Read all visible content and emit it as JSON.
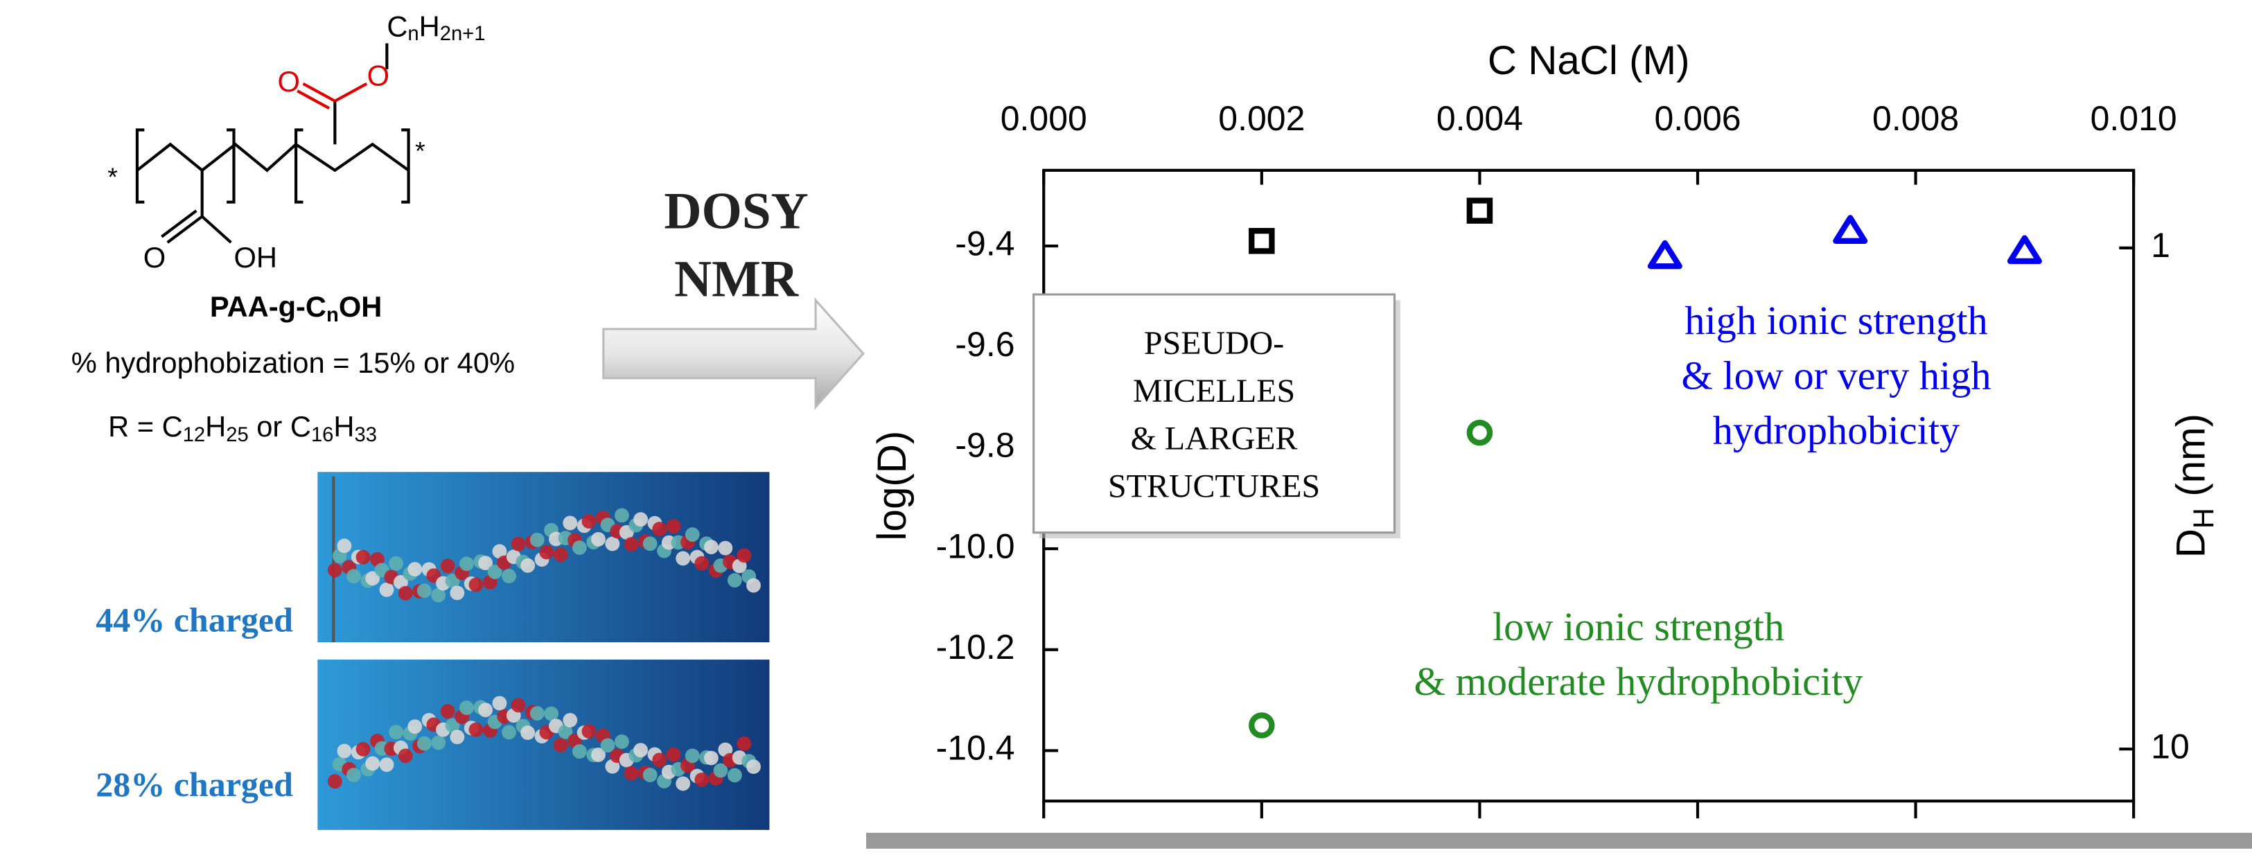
{
  "chemistry": {
    "substituent": [
      "C",
      "n",
      "H",
      "2n+1"
    ],
    "ester_oxygens": [
      "O",
      "O"
    ],
    "acid": [
      "O",
      "OH"
    ],
    "ends": [
      "*",
      "*"
    ],
    "name": [
      "PAA-g-C",
      "n",
      "OH"
    ],
    "hydrophobization": "% hydrophobization = 15% or 40%",
    "r_formula": [
      "R = C",
      "12",
      "H",
      "25",
      " or C",
      "16",
      "H",
      "33"
    ]
  },
  "method": [
    "DOSY",
    "NMR"
  ],
  "snapshots": [
    "44% charged",
    "28% charged"
  ],
  "chart_data": {
    "type": "scatter",
    "xlabel": "C NaCl (M)",
    "ylabel": "log(D)",
    "y2label": [
      "D",
      "H",
      " (nm)"
    ],
    "xlim": [
      0,
      0.01
    ],
    "xticks": [
      {
        "value": 0,
        "label": "0.000"
      },
      0.002,
      0.004,
      0.006,
      0.008,
      {
        "value": 0.01,
        "label": "0.010"
      }
    ],
    "ylim": [
      -10.5,
      -9.25
    ],
    "yticks": [
      -9.4,
      -9.6,
      -9.8,
      {
        "value": -10,
        "label": "-10.0"
      },
      -10.2,
      -10.4
    ],
    "y2lim": [
      0.7,
      12.7
    ],
    "y2scale": "log",
    "y2ticks": [
      1,
      10
    ],
    "series": [
      {
        "color": "#000000",
        "marker": "square",
        "x": [
          0.002,
          0.004
        ],
        "values": [
          -9.39,
          -9.33
        ]
      },
      {
        "color": "#228b22",
        "marker": "circle",
        "x": [
          0.002,
          0.004
        ],
        "values": [
          -10.35,
          -9.77
        ]
      },
      {
        "color": "#0000ee",
        "marker": "triangle",
        "x": [
          0.0057,
          0.0074,
          0.009
        ],
        "values": [
          -9.42,
          -9.37,
          -9.41
        ]
      }
    ],
    "annotations": [
      {
        "lines": [
          "PSEUDO-",
          "MICELLES",
          "& LARGER",
          "STRUCTURES"
        ],
        "color": "#000000"
      },
      {
        "lines": [
          "high ionic strength",
          "& low or very high",
          "hydrophobicity"
        ],
        "color": "#0000ee"
      },
      {
        "lines": [
          "low ionic strength",
          "& moderate hydrophobicity"
        ],
        "color": "#228b22"
      }
    ]
  }
}
